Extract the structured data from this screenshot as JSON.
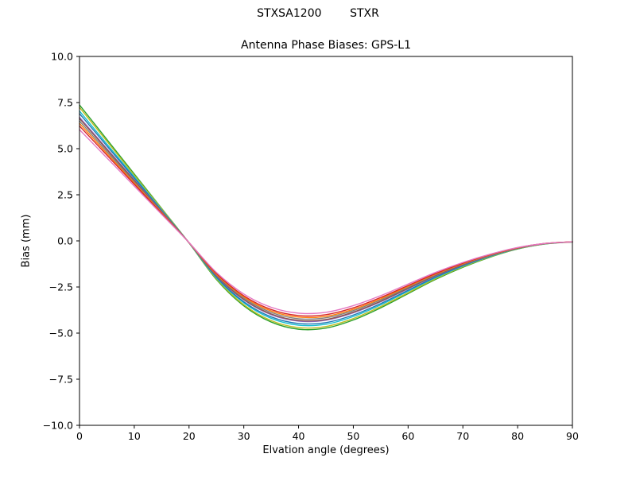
{
  "chart_data": {
    "type": "line",
    "suptitle": "STXSA1200        STXR",
    "title": "Antenna Phase Biases: GPS-L1",
    "xlabel": "Elvation angle (degrees)",
    "ylabel": "Bias (mm)",
    "xlim": [
      0,
      90
    ],
    "ylim": [
      -10,
      10
    ],
    "grid": false,
    "legend": "none",
    "xticks": [
      0,
      10,
      20,
      30,
      40,
      50,
      60,
      70,
      80,
      90
    ],
    "xtick_labels": [
      "0",
      "10",
      "20",
      "30",
      "40",
      "50",
      "60",
      "70",
      "80",
      "90"
    ],
    "yticks": [
      -10,
      -7.5,
      -5,
      -2.5,
      0,
      2.5,
      5,
      7.5,
      10
    ],
    "ytick_labels": [
      "−10.0",
      "−7.5",
      "−5.0",
      "−2.5",
      "0.0",
      "2.5",
      "5.0",
      "7.5",
      "10.0"
    ],
    "x": [
      0,
      5,
      10,
      15,
      20,
      25,
      30,
      35,
      40,
      45,
      50,
      55,
      60,
      65,
      70,
      75,
      80,
      85,
      90
    ],
    "series": [
      {
        "name": "curve-01",
        "color": "#2ca02c",
        "values": [
          7.37,
          5.5,
          3.63,
          1.76,
          -0.11,
          -2.09,
          -3.52,
          -4.4,
          -4.79,
          -4.73,
          -4.29,
          -3.63,
          -2.86,
          -2.09,
          -1.43,
          -0.88,
          -0.44,
          -0.17,
          -0.06
        ]
      },
      {
        "name": "curve-02",
        "color": "#bcbd22",
        "values": [
          7.24,
          5.4,
          3.56,
          1.73,
          -0.11,
          -2.05,
          -3.46,
          -4.32,
          -4.7,
          -4.64,
          -4.21,
          -3.56,
          -2.81,
          -2.05,
          -1.4,
          -0.86,
          -0.43,
          -0.16,
          -0.05
        ]
      },
      {
        "name": "curve-03",
        "color": "#17becf",
        "values": [
          7.04,
          5.25,
          3.47,
          1.68,
          -0.11,
          -2.0,
          -3.36,
          -4.2,
          -4.57,
          -4.52,
          -4.1,
          -3.47,
          -2.73,
          -2.0,
          -1.37,
          -0.84,
          -0.42,
          -0.16,
          -0.05
        ]
      },
      {
        "name": "curve-04",
        "color": "#1f77b4",
        "values": [
          6.9,
          5.15,
          3.4,
          1.65,
          -0.1,
          -1.96,
          -3.3,
          -4.12,
          -4.48,
          -4.43,
          -4.02,
          -3.4,
          -2.68,
          -1.96,
          -1.34,
          -0.82,
          -0.41,
          -0.15,
          -0.05
        ]
      },
      {
        "name": "curve-05",
        "color": "#9467bd",
        "values": [
          6.7,
          5.0,
          3.3,
          1.6,
          -0.1,
          -1.9,
          -3.2,
          -4.0,
          -4.35,
          -4.3,
          -3.9,
          -3.3,
          -2.6,
          -1.9,
          -1.3,
          -0.8,
          -0.4,
          -0.15,
          -0.05
        ]
      },
      {
        "name": "curve-06",
        "color": "#8c564b",
        "values": [
          6.63,
          4.95,
          3.27,
          1.58,
          -0.1,
          -1.88,
          -3.17,
          -3.96,
          -4.31,
          -4.26,
          -3.86,
          -3.27,
          -2.57,
          -1.88,
          -1.29,
          -0.79,
          -0.4,
          -0.15,
          -0.05
        ]
      },
      {
        "name": "curve-07",
        "color": "#7f7f7f",
        "values": [
          6.5,
          4.85,
          3.2,
          1.55,
          -0.1,
          -1.84,
          -3.1,
          -3.88,
          -4.22,
          -4.17,
          -3.78,
          -3.2,
          -2.52,
          -1.84,
          -1.26,
          -0.78,
          -0.39,
          -0.15,
          -0.05
        ]
      },
      {
        "name": "curve-08",
        "color": "#ff7f0e",
        "values": [
          6.37,
          4.75,
          3.14,
          1.52,
          -0.1,
          -1.81,
          -3.04,
          -3.8,
          -4.13,
          -4.09,
          -3.71,
          -3.14,
          -2.47,
          -1.81,
          -1.24,
          -0.76,
          -0.38,
          -0.14,
          -0.05
        ]
      },
      {
        "name": "curve-09",
        "color": "#d62728",
        "values": [
          6.23,
          4.65,
          3.07,
          1.49,
          -0.09,
          -1.77,
          -2.98,
          -3.72,
          -4.05,
          -4.0,
          -3.63,
          -3.07,
          -2.42,
          -1.77,
          -1.21,
          -0.74,
          -0.37,
          -0.14,
          -0.05
        ]
      },
      {
        "name": "curve-10",
        "color": "#e377c2",
        "values": [
          6.03,
          4.5,
          2.97,
          1.44,
          -0.09,
          -1.71,
          -2.88,
          -3.6,
          -3.92,
          -3.87,
          -3.51,
          -2.97,
          -2.34,
          -1.71,
          -1.17,
          -0.72,
          -0.36,
          -0.14,
          -0.05
        ]
      }
    ]
  }
}
